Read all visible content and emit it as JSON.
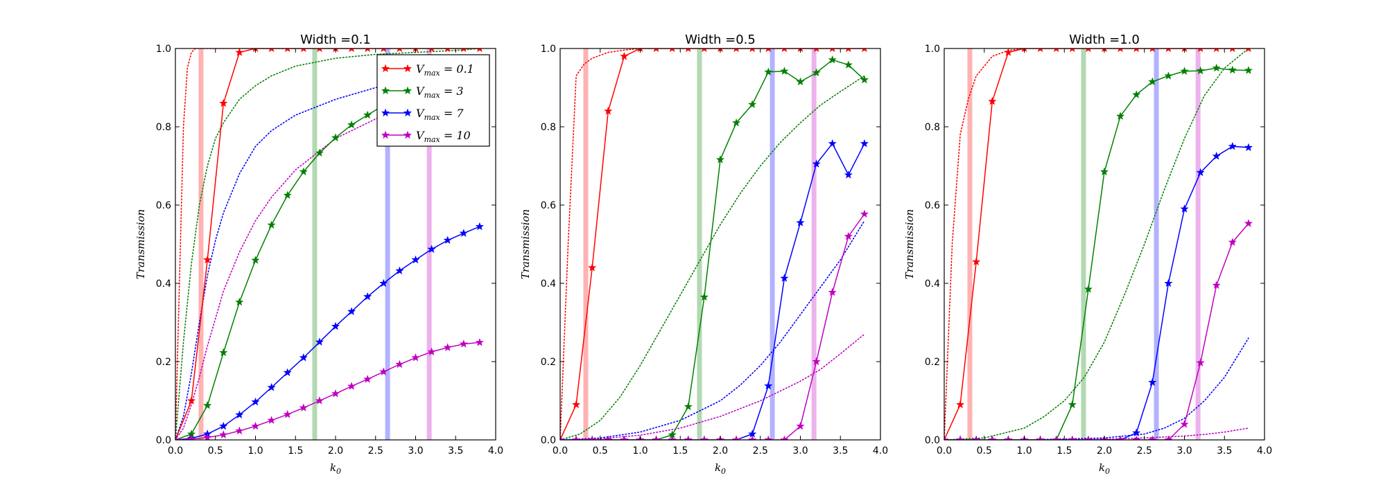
{
  "chart_data": [
    {
      "type": "line",
      "title": "Width =0.1",
      "xlabel": "k",
      "xlabel_sub": "0",
      "ylabel": "Transmission",
      "xlim": [
        0,
        4
      ],
      "ylim": [
        0,
        1
      ],
      "xticks": [
        "0.0",
        "0.5",
        "1.0",
        "1.5",
        "2.0",
        "2.5",
        "3.0",
        "3.5",
        "4.0"
      ],
      "yticks": [
        "0.0",
        "0.2",
        "0.4",
        "0.6",
        "0.8",
        "1.0"
      ],
      "legend": {
        "placement": "upper-right",
        "entries": [
          {
            "prefix": "V",
            "sub": "max",
            "suffix": " = 0.1",
            "series": 0
          },
          {
            "prefix": "V",
            "sub": "max",
            "suffix": " = 3",
            "series": 1
          },
          {
            "prefix": "V",
            "sub": "max",
            "suffix": " = 7",
            "series": 2
          },
          {
            "prefix": "V",
            "sub": "max",
            "suffix": " = 10",
            "series": 3
          }
        ]
      },
      "bands": [
        {
          "x": 0.32,
          "color": "#ff0000"
        },
        {
          "x": 1.74,
          "color": "#008000"
        },
        {
          "x": 2.65,
          "color": "#0000ff"
        },
        {
          "x": 3.17,
          "color": "#bf00bf"
        }
      ],
      "series": [
        {
          "color": "#ff0000",
          "x": [
            0.0,
            0.2,
            0.4,
            0.6,
            0.8,
            1.0,
            1.2,
            1.4,
            1.6,
            1.8,
            2.0,
            2.2,
            2.4,
            2.6,
            2.8,
            3.0,
            3.2,
            3.4,
            3.6,
            3.8
          ],
          "y": [
            0.0,
            0.1,
            0.46,
            0.86,
            0.99,
            1.0,
            1.0,
            1.0,
            1.0,
            1.0,
            1.0,
            1.0,
            1.0,
            1.0,
            1.0,
            1.0,
            1.0,
            1.0,
            1.0,
            1.0
          ]
        },
        {
          "color": "#008000",
          "x": [
            0.0,
            0.2,
            0.4,
            0.6,
            0.8,
            1.0,
            1.2,
            1.4,
            1.6,
            1.8,
            2.0,
            2.2,
            2.4,
            2.6,
            2.8,
            3.0,
            3.2,
            3.4,
            3.6,
            3.8
          ],
          "y": [
            0.0,
            0.015,
            0.088,
            0.223,
            0.352,
            0.459,
            0.549,
            0.625,
            0.685,
            0.733,
            0.772,
            0.805,
            0.83,
            0.855,
            0.875,
            0.895,
            0.91,
            0.925,
            0.94,
            0.95
          ]
        },
        {
          "color": "#0000ff",
          "x": [
            0.0,
            0.2,
            0.4,
            0.6,
            0.8,
            1.0,
            1.2,
            1.4,
            1.6,
            1.8,
            2.0,
            2.2,
            2.4,
            2.6,
            2.8,
            3.0,
            3.2,
            3.4,
            3.6,
            3.8
          ],
          "y": [
            0.0,
            0.004,
            0.015,
            0.035,
            0.064,
            0.097,
            0.134,
            0.172,
            0.21,
            0.25,
            0.29,
            0.328,
            0.366,
            0.4,
            0.432,
            0.46,
            0.487,
            0.51,
            0.528,
            0.545
          ]
        },
        {
          "color": "#bf00bf",
          "x": [
            0.0,
            0.2,
            0.4,
            0.6,
            0.8,
            1.0,
            1.2,
            1.4,
            1.6,
            1.8,
            2.0,
            2.2,
            2.4,
            2.6,
            2.8,
            3.0,
            3.2,
            3.4,
            3.6,
            3.8
          ],
          "y": [
            0.0,
            0.002,
            0.006,
            0.013,
            0.023,
            0.035,
            0.05,
            0.065,
            0.082,
            0.1,
            0.118,
            0.137,
            0.155,
            0.174,
            0.193,
            0.21,
            0.225,
            0.236,
            0.245,
            0.249
          ]
        }
      ],
      "dotted": [
        {
          "color": "#ff0000",
          "x": [
            0,
            0.05,
            0.1,
            0.15,
            0.2,
            0.25,
            0.35,
            0.5,
            0.7,
            1.0,
            3.8
          ],
          "y": [
            0,
            0.4,
            0.8,
            0.95,
            0.99,
            1.0,
            1.0,
            1.0,
            1.0,
            1.0,
            1.0
          ]
        },
        {
          "color": "#008000",
          "x": [
            0,
            0.1,
            0.2,
            0.3,
            0.4,
            0.5,
            0.6,
            0.8,
            1.0,
            1.2,
            1.5,
            2.0,
            2.5,
            3.0,
            3.5,
            3.8
          ],
          "y": [
            0,
            0.25,
            0.45,
            0.6,
            0.7,
            0.77,
            0.81,
            0.87,
            0.905,
            0.93,
            0.955,
            0.975,
            0.985,
            0.99,
            0.995,
            1.0
          ]
        },
        {
          "color": "#0000ff",
          "x": [
            0,
            0.1,
            0.2,
            0.3,
            0.4,
            0.5,
            0.6,
            0.8,
            1.0,
            1.2,
            1.5,
            2.0,
            2.5,
            3.0,
            3.5,
            3.8
          ],
          "y": [
            0,
            0.06,
            0.17,
            0.3,
            0.42,
            0.51,
            0.58,
            0.68,
            0.75,
            0.79,
            0.83,
            0.87,
            0.9,
            0.92,
            0.94,
            0.95
          ]
        },
        {
          "color": "#bf00bf",
          "x": [
            0,
            0.1,
            0.2,
            0.3,
            0.4,
            0.5,
            0.6,
            0.8,
            1.0,
            1.2,
            1.5,
            2.0,
            2.5,
            3.0,
            3.5,
            3.8
          ],
          "y": [
            0,
            0.03,
            0.09,
            0.16,
            0.24,
            0.31,
            0.38,
            0.48,
            0.56,
            0.62,
            0.69,
            0.77,
            0.82,
            0.86,
            0.89,
            0.9
          ]
        }
      ]
    },
    {
      "type": "line",
      "title": "Width =0.5",
      "xlabel": "k",
      "xlabel_sub": "0",
      "ylabel": "Transmission",
      "xlim": [
        0,
        4
      ],
      "ylim": [
        0,
        1
      ],
      "xticks": [
        "0.0",
        "0.5",
        "1.0",
        "1.5",
        "2.0",
        "2.5",
        "3.0",
        "3.5",
        "4.0"
      ],
      "yticks": [
        "0.0",
        "0.2",
        "0.4",
        "0.6",
        "0.8",
        "1.0"
      ],
      "bands": [
        {
          "x": 0.32,
          "color": "#ff0000"
        },
        {
          "x": 1.74,
          "color": "#008000"
        },
        {
          "x": 2.65,
          "color": "#0000ff"
        },
        {
          "x": 3.17,
          "color": "#bf00bf"
        }
      ],
      "series": [
        {
          "color": "#ff0000",
          "x": [
            0.0,
            0.2,
            0.4,
            0.6,
            0.8,
            1.0,
            1.2,
            1.4,
            1.6,
            1.8,
            2.0,
            2.2,
            2.4,
            2.6,
            2.8,
            3.0,
            3.2,
            3.4,
            3.6,
            3.8
          ],
          "y": [
            0.0,
            0.09,
            0.44,
            0.84,
            0.98,
            1.0,
            1.0,
            1.0,
            1.0,
            1.0,
            1.0,
            1.0,
            1.0,
            1.0,
            1.0,
            1.0,
            1.0,
            1.0,
            1.0,
            1.0
          ]
        },
        {
          "color": "#008000",
          "x": [
            0.0,
            0.2,
            0.4,
            0.6,
            0.8,
            1.0,
            1.2,
            1.4,
            1.6,
            1.8,
            2.0,
            2.2,
            2.4,
            2.6,
            2.8,
            3.0,
            3.2,
            3.4,
            3.6,
            3.8
          ],
          "y": [
            0.0,
            0.0,
            0.0,
            0.0,
            0.0,
            0.0,
            0.0,
            0.013,
            0.085,
            0.365,
            0.716,
            0.81,
            0.857,
            0.94,
            0.942,
            0.915,
            0.938,
            0.971,
            0.958,
            0.92
          ]
        },
        {
          "color": "#0000ff",
          "x": [
            0.0,
            0.2,
            0.4,
            0.6,
            0.8,
            1.0,
            1.2,
            1.4,
            1.6,
            1.8,
            2.0,
            2.2,
            2.4,
            2.6,
            2.8,
            3.0,
            3.2,
            3.4,
            3.6,
            3.8
          ],
          "y": [
            0.0,
            0.0,
            0.0,
            0.0,
            0.0,
            0.0,
            0.0,
            0.0,
            0.0,
            0.0,
            0.0,
            0.0,
            0.015,
            0.138,
            0.413,
            0.555,
            0.705,
            0.757,
            0.677,
            0.757
          ]
        },
        {
          "color": "#bf00bf",
          "x": [
            0.0,
            0.2,
            0.4,
            0.6,
            0.8,
            1.0,
            1.2,
            1.4,
            1.6,
            1.8,
            2.0,
            2.2,
            2.4,
            2.6,
            2.8,
            3.0,
            3.2,
            3.4,
            3.6,
            3.8
          ],
          "y": [
            0.0,
            0.0,
            0.0,
            0.0,
            0.0,
            0.0,
            0.0,
            0.0,
            0.0,
            0.0,
            0.0,
            0.0,
            0.0,
            0.0,
            0.0,
            0.035,
            0.2,
            0.377,
            0.52,
            0.577
          ]
        }
      ],
      "dotted": [
        {
          "color": "#ff0000",
          "x": [
            0,
            0.1,
            0.2,
            0.3,
            0.4,
            0.6,
            0.8,
            1.0,
            1.2,
            3.8
          ],
          "y": [
            0,
            0.5,
            0.93,
            0.96,
            0.975,
            0.99,
            0.996,
            1.0,
            1.0,
            1.0
          ]
        },
        {
          "color": "#008000",
          "x": [
            0,
            0.25,
            0.5,
            0.75,
            1.0,
            1.25,
            1.5,
            1.75,
            2.0,
            2.25,
            2.5,
            2.75,
            3.0,
            3.25,
            3.5,
            3.8
          ],
          "y": [
            0,
            0.015,
            0.05,
            0.11,
            0.19,
            0.28,
            0.37,
            0.46,
            0.55,
            0.63,
            0.7,
            0.76,
            0.81,
            0.855,
            0.89,
            0.93
          ]
        },
        {
          "color": "#0000ff",
          "x": [
            0,
            0.5,
            1.0,
            1.5,
            2.0,
            2.25,
            2.5,
            2.75,
            3.0,
            3.25,
            3.5,
            3.8
          ],
          "y": [
            0,
            0.005,
            0.02,
            0.05,
            0.1,
            0.14,
            0.19,
            0.25,
            0.32,
            0.39,
            0.46,
            0.56
          ]
        },
        {
          "color": "#bf00bf",
          "x": [
            0,
            0.5,
            1.0,
            1.5,
            2.0,
            2.5,
            3.0,
            3.25,
            3.5,
            3.8
          ],
          "y": [
            0,
            0.003,
            0.012,
            0.03,
            0.06,
            0.1,
            0.15,
            0.18,
            0.22,
            0.27
          ]
        }
      ]
    },
    {
      "type": "line",
      "title": "Width =1.0",
      "xlabel": "k",
      "xlabel_sub": "0",
      "ylabel": "Transmission",
      "xlim": [
        0,
        4
      ],
      "ylim": [
        0,
        1
      ],
      "xticks": [
        "0.0",
        "0.5",
        "1.0",
        "1.5",
        "2.0",
        "2.5",
        "3.0",
        "3.5",
        "4.0"
      ],
      "yticks": [
        "0.0",
        "0.2",
        "0.4",
        "0.6",
        "0.8",
        "1.0"
      ],
      "bands": [
        {
          "x": 0.32,
          "color": "#ff0000"
        },
        {
          "x": 1.74,
          "color": "#008000"
        },
        {
          "x": 2.65,
          "color": "#0000ff"
        },
        {
          "x": 3.17,
          "color": "#bf00bf"
        }
      ],
      "series": [
        {
          "color": "#ff0000",
          "x": [
            0.0,
            0.2,
            0.4,
            0.6,
            0.8,
            1.0,
            1.2,
            1.4,
            1.6,
            1.8,
            2.0,
            2.2,
            2.4,
            2.6,
            2.8,
            3.0,
            3.2,
            3.4,
            3.6,
            3.8
          ],
          "y": [
            0.0,
            0.09,
            0.455,
            0.865,
            0.99,
            1.0,
            1.0,
            1.0,
            1.0,
            1.0,
            1.0,
            1.0,
            1.0,
            1.0,
            1.0,
            1.0,
            1.0,
            1.0,
            1.0,
            1.0
          ]
        },
        {
          "color": "#008000",
          "x": [
            0.0,
            0.2,
            0.4,
            0.6,
            0.8,
            1.0,
            1.2,
            1.4,
            1.6,
            1.8,
            2.0,
            2.2,
            2.4,
            2.6,
            2.8,
            3.0,
            3.2,
            3.4,
            3.6,
            3.8
          ],
          "y": [
            0.0,
            0.0,
            0.0,
            0.0,
            0.0,
            0.0,
            0.0,
            0.0,
            0.09,
            0.385,
            0.685,
            0.827,
            0.882,
            0.915,
            0.93,
            0.942,
            0.943,
            0.95,
            0.945,
            0.944
          ]
        },
        {
          "color": "#0000ff",
          "x": [
            0.0,
            0.2,
            0.4,
            0.6,
            0.8,
            1.0,
            1.2,
            1.4,
            1.6,
            1.8,
            2.0,
            2.2,
            2.4,
            2.6,
            2.8,
            3.0,
            3.2,
            3.4,
            3.6,
            3.8
          ],
          "y": [
            0.0,
            0.0,
            0.0,
            0.0,
            0.0,
            0.0,
            0.0,
            0.0,
            0.0,
            0.0,
            0.0,
            0.0,
            0.018,
            0.147,
            0.4,
            0.59,
            0.683,
            0.725,
            0.75,
            0.747
          ]
        },
        {
          "color": "#bf00bf",
          "x": [
            0.0,
            0.2,
            0.4,
            0.6,
            0.8,
            1.0,
            1.2,
            1.4,
            1.6,
            1.8,
            2.0,
            2.2,
            2.4,
            2.6,
            2.8,
            3.0,
            3.2,
            3.4,
            3.6,
            3.8
          ],
          "y": [
            0.0,
            0.0,
            0.0,
            0.0,
            0.0,
            0.0,
            0.0,
            0.0,
            0.0,
            0.0,
            0.0,
            0.0,
            0.0,
            0.0,
            0.0,
            0.04,
            0.197,
            0.395,
            0.505,
            0.553
          ]
        }
      ],
      "dotted": [
        {
          "color": "#ff0000",
          "x": [
            0,
            0.1,
            0.2,
            0.3,
            0.4,
            0.6,
            0.8,
            1.0,
            1.2,
            3.8
          ],
          "y": [
            0,
            0.5,
            0.78,
            0.87,
            0.93,
            0.98,
            0.995,
            1.0,
            1.0,
            1.0
          ]
        },
        {
          "color": "#008000",
          "x": [
            0,
            0.5,
            1.0,
            1.25,
            1.5,
            1.75,
            2.0,
            2.25,
            2.5,
            2.75,
            3.0,
            3.25,
            3.5,
            3.8
          ],
          "y": [
            0,
            0.005,
            0.03,
            0.06,
            0.1,
            0.16,
            0.25,
            0.37,
            0.5,
            0.64,
            0.77,
            0.88,
            0.95,
            1.0
          ]
        },
        {
          "color": "#0000ff",
          "x": [
            0,
            1.0,
            2.0,
            2.5,
            2.75,
            3.0,
            3.25,
            3.5,
            3.8
          ],
          "y": [
            0,
            0.0,
            0.005,
            0.015,
            0.03,
            0.055,
            0.1,
            0.16,
            0.26
          ]
        },
        {
          "color": "#bf00bf",
          "x": [
            0,
            1.0,
            2.0,
            2.5,
            3.0,
            3.25,
            3.5,
            3.8
          ],
          "y": [
            0,
            0.0,
            0.002,
            0.005,
            0.01,
            0.014,
            0.02,
            0.03
          ]
        }
      ]
    }
  ]
}
